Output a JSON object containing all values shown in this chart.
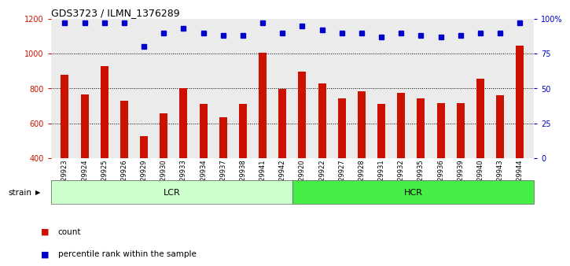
{
  "title": "GDS3723 / ILMN_1376289",
  "categories": [
    "GSM429923",
    "GSM429924",
    "GSM429925",
    "GSM429926",
    "GSM429929",
    "GSM429930",
    "GSM429933",
    "GSM429934",
    "GSM429937",
    "GSM429938",
    "GSM429941",
    "GSM429942",
    "GSM429920",
    "GSM429922",
    "GSM429927",
    "GSM429928",
    "GSM429931",
    "GSM429932",
    "GSM429935",
    "GSM429936",
    "GSM429939",
    "GSM429940",
    "GSM429943",
    "GSM429944"
  ],
  "bar_values": [
    880,
    765,
    930,
    730,
    525,
    655,
    800,
    710,
    635,
    710,
    1005,
    795,
    895,
    830,
    745,
    785,
    710,
    775,
    745,
    715,
    715,
    855,
    760,
    1045
  ],
  "percentile_values": [
    97,
    97,
    97,
    97,
    80,
    90,
    93,
    90,
    88,
    88,
    97,
    90,
    95,
    92,
    90,
    90,
    87,
    90,
    88,
    87,
    88,
    90,
    90,
    97
  ],
  "lcr_count": 12,
  "hcr_count": 12,
  "bar_color": "#cc1100",
  "percentile_color": "#0000cc",
  "lcr_color": "#ccffcc",
  "hcr_color": "#44ee44",
  "strain_label": "strain",
  "lcr_label": "LCR",
  "hcr_label": "HCR",
  "legend_count": "count",
  "legend_percentile": "percentile rank within the sample",
  "ylim_left": [
    400,
    1200
  ],
  "ylim_right": [
    0,
    100
  ],
  "yticks_left": [
    400,
    600,
    800,
    1000,
    1200
  ],
  "yticks_right": [
    0,
    25,
    50,
    75,
    100
  ],
  "background_color": "#ffffff",
  "plot_bg_color": "#ebebeb"
}
